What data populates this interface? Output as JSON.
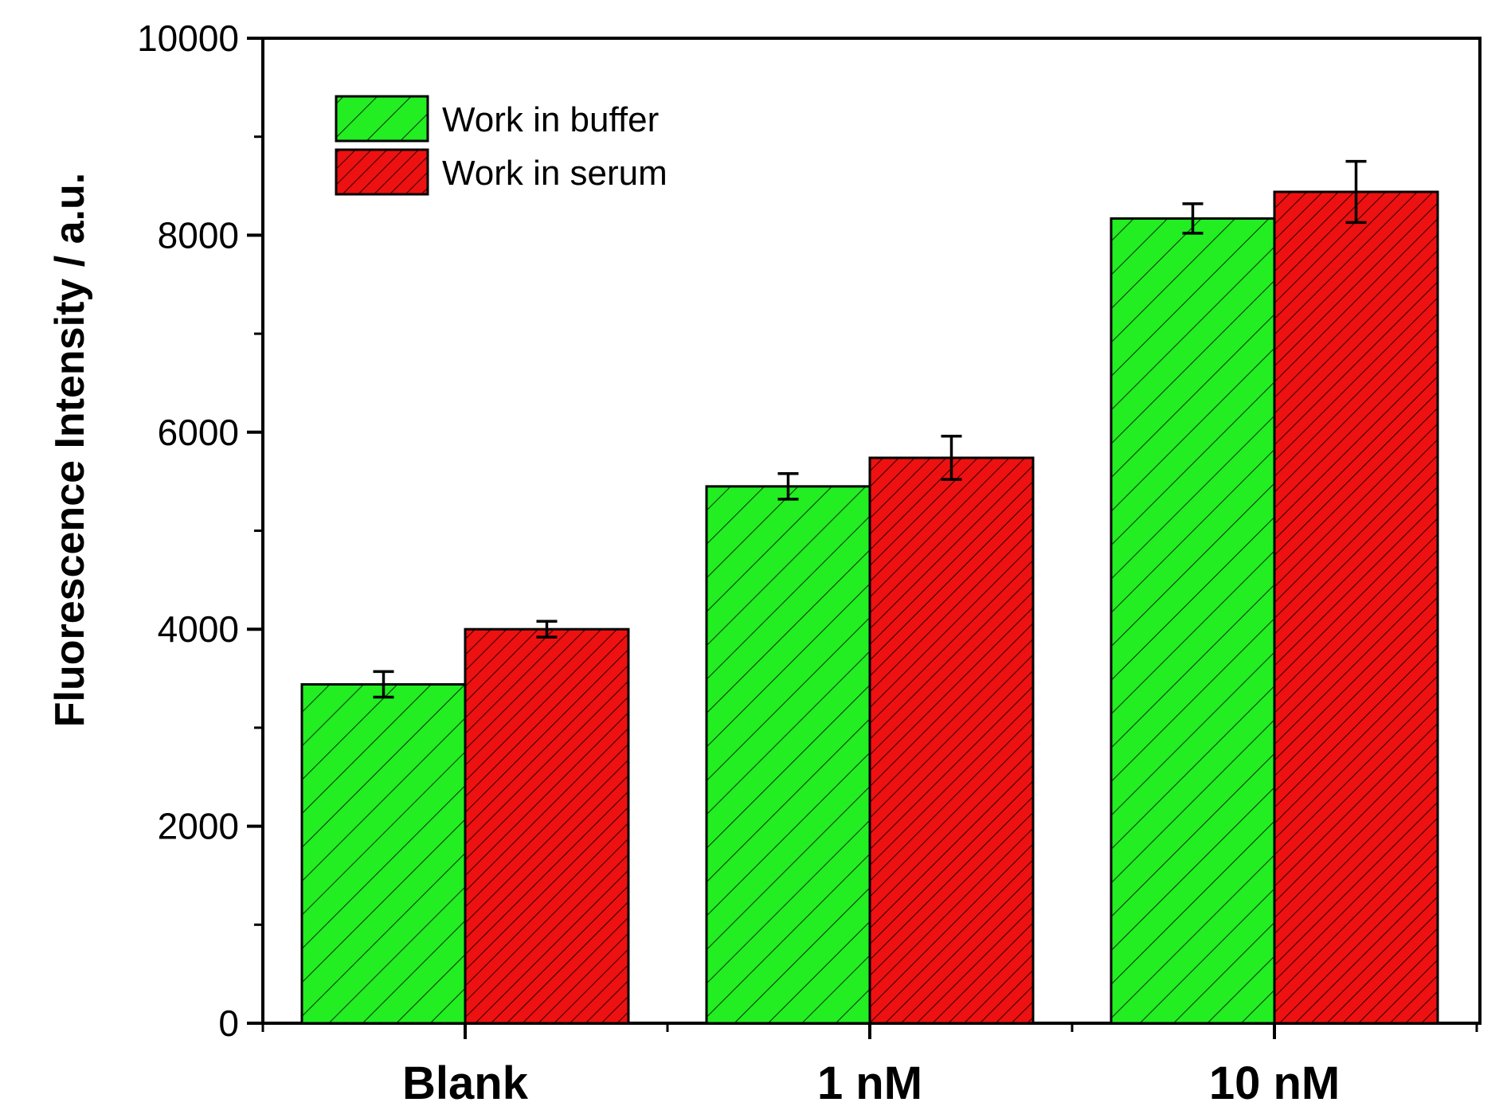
{
  "chart_data": {
    "type": "bar",
    "title": "",
    "xlabel": "",
    "ylabel": "Fluorescence Intensity / a.u.",
    "ylim": [
      0,
      10000
    ],
    "yticks": [
      0,
      2000,
      4000,
      6000,
      8000,
      10000
    ],
    "categories": [
      "Blank",
      "1 nM",
      "10 nM"
    ],
    "series": [
      {
        "name": "Work in buffer",
        "color": "#22ee22",
        "pattern": "hatch-wide",
        "values": [
          3440,
          5450,
          8170
        ],
        "errors": [
          130,
          130,
          150
        ]
      },
      {
        "name": "Work in serum",
        "color": "#ee1111",
        "pattern": "hatch-dense",
        "values": [
          4000,
          5740,
          8440
        ],
        "errors": [
          80,
          220,
          310
        ]
      }
    ],
    "legend_position": "top-left",
    "grid": false
  }
}
